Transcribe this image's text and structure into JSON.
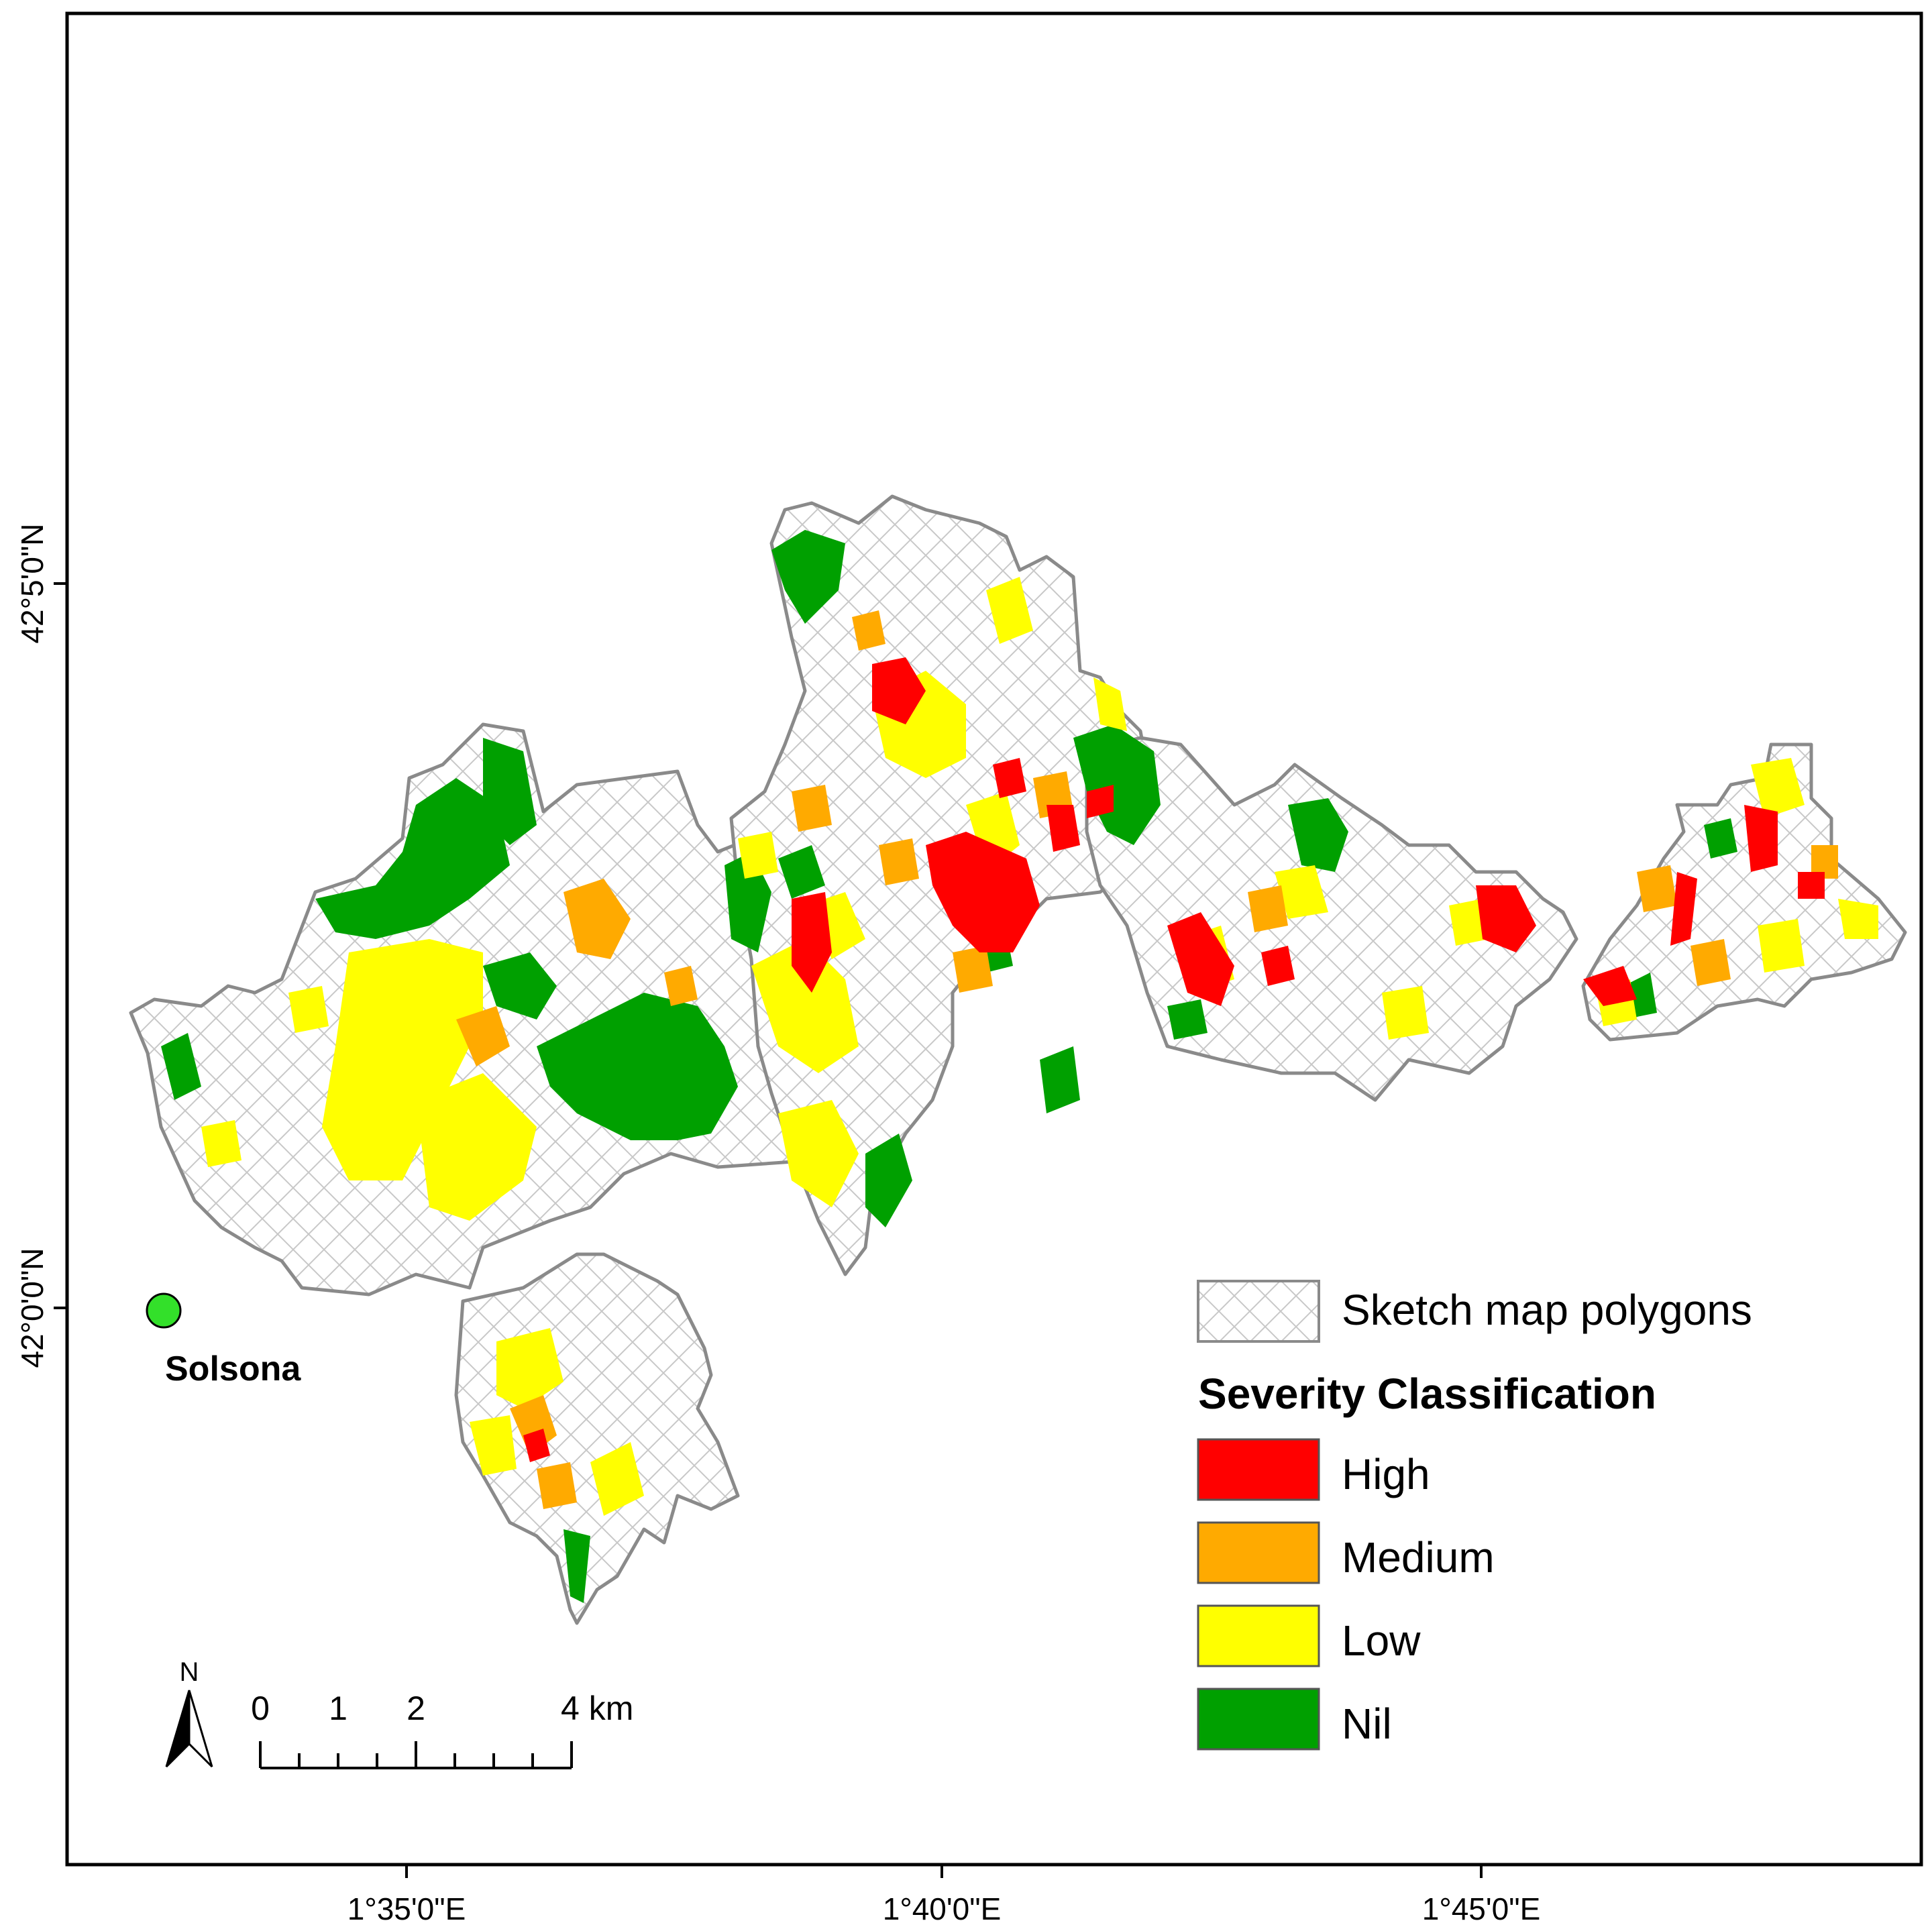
{
  "map": {
    "axes": {
      "x_ticks": [
        "1°35'0\"E",
        "1°40'0\"E",
        "1°45'0\"E"
      ],
      "y_ticks": [
        "42°5'0\"N",
        "42°0'0\"N"
      ]
    },
    "town": {
      "name": "Solsona",
      "color": "#33e02a"
    },
    "legend": {
      "sketch_label": "Sketch map polygons",
      "title": "Severity Classification",
      "classes": [
        {
          "label": "High",
          "color": "#ff0000"
        },
        {
          "label": "Medium",
          "color": "#ffaa00"
        },
        {
          "label": "Low",
          "color": "#ffff00"
        },
        {
          "label": "Nil",
          "color": "#00a000"
        }
      ]
    },
    "north_arrow": {
      "label": "N",
      "icon": "north-arrow-icon"
    },
    "scale_bar": {
      "labels": [
        "0",
        "1",
        "2",
        "4 km"
      ]
    }
  }
}
